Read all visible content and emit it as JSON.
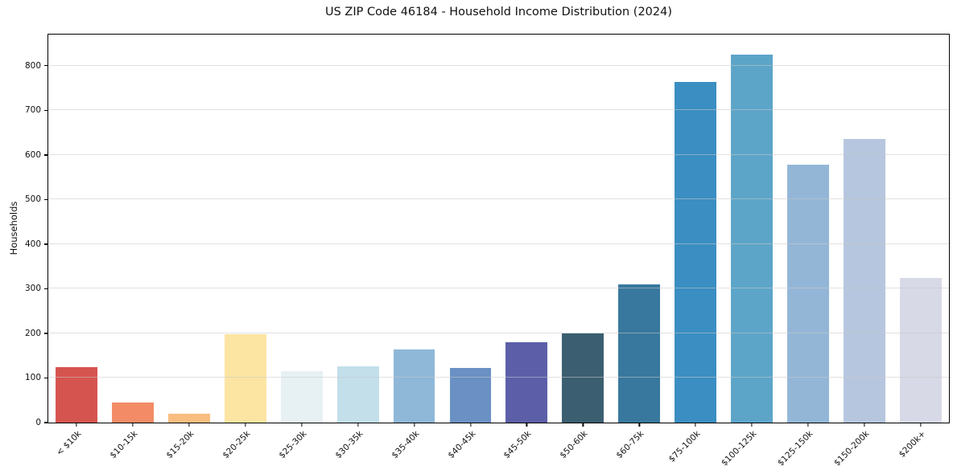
{
  "chart_data": {
    "type": "bar",
    "title": "US ZIP Code 46184 - Household Income Distribution (2024)",
    "xlabel": "",
    "ylabel": "Households",
    "categories": [
      "< $10k",
      "$10-15k",
      "$15-20k",
      "$20-25k",
      "$25-30k",
      "$30-35k",
      "$35-40k",
      "$40-45k",
      "$45-50k",
      "$50-60k",
      "$60-75k",
      "$75-100k",
      "$100-125k",
      "$125-150k",
      "$150-200k",
      "$200k+"
    ],
    "values": [
      125,
      45,
      20,
      198,
      115,
      127,
      164,
      123,
      180,
      200,
      310,
      763,
      825,
      578,
      635,
      325
    ],
    "bar_colors": [
      "#d6544f",
      "#f28b66",
      "#f9bd80",
      "#fce4a2",
      "#e7f1f4",
      "#c2dfea",
      "#8eb7d8",
      "#6a90c4",
      "#5c5fa8",
      "#3b5f70",
      "#38789e",
      "#3a8ec1",
      "#5ca5c9",
      "#93b6d7",
      "#b6c6de",
      "#d7d9e6"
    ],
    "yticks": [
      0,
      100,
      200,
      300,
      400,
      500,
      600,
      700,
      800
    ],
    "ylim": [
      0,
      870
    ],
    "grid": "horizontal-above-bars",
    "gridline_color": "#e3e3e3",
    "spine_color": "#000000",
    "background_color": "#ffffff",
    "legend": "none"
  }
}
